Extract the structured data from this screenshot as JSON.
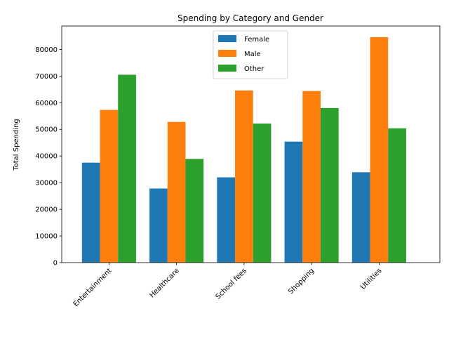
{
  "chart_data": {
    "type": "bar",
    "title": "Spending by Category and Gender",
    "xlabel": "",
    "ylabel": "Total Spending",
    "categories": [
      "Entertainment",
      "Healthcare",
      "School fees",
      "Shopping",
      "Utilities"
    ],
    "series": [
      {
        "name": "Female",
        "color": "#1f77b4",
        "values": [
          37500,
          27800,
          32000,
          45400,
          33900
        ]
      },
      {
        "name": "Male",
        "color": "#ff7f0e",
        "values": [
          57300,
          52800,
          64600,
          64400,
          84600
        ]
      },
      {
        "name": "Other",
        "color": "#2ca02c",
        "values": [
          70500,
          38900,
          52200,
          58000,
          50400
        ]
      }
    ],
    "ylim": [
      0,
      88800
    ],
    "yticks": [
      0,
      10000,
      20000,
      30000,
      40000,
      50000,
      60000,
      70000,
      80000
    ],
    "xtick_rotation_deg": 45,
    "grid": false,
    "legend_position": "top-center"
  }
}
